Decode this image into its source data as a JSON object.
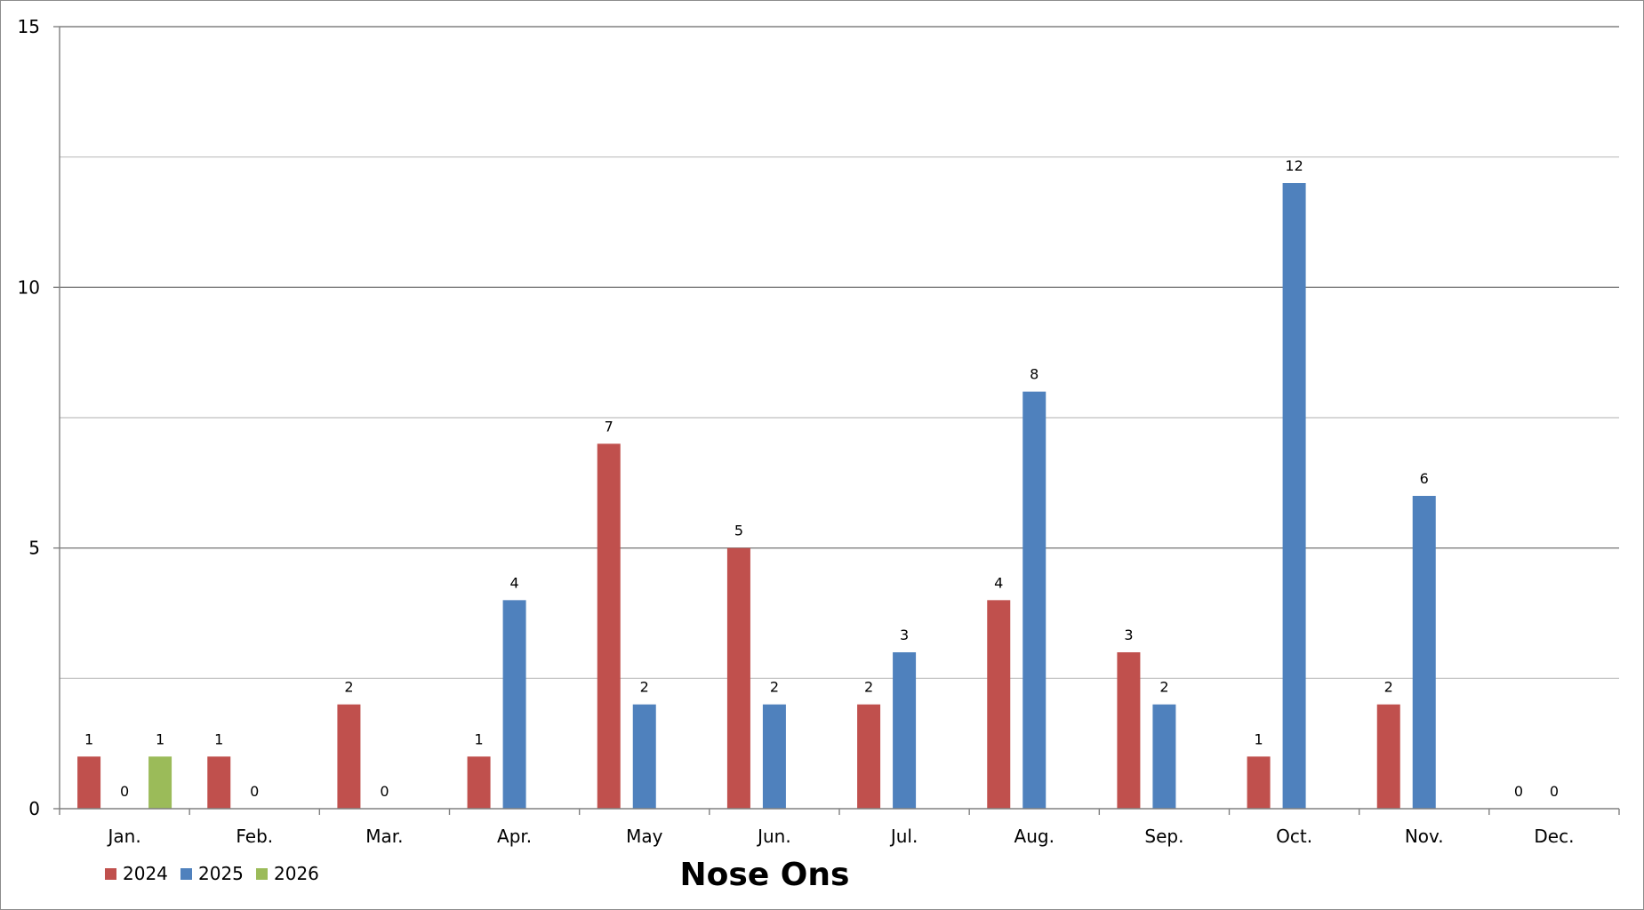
{
  "chart_data": {
    "type": "bar",
    "title": "Nose Ons",
    "xlabel": "",
    "ylabel": "",
    "ylim": [
      0,
      15
    ],
    "yticks": [
      0,
      5,
      10,
      15
    ],
    "minor_gridlines": true,
    "grid": true,
    "legend_position": "bottom-left",
    "categories": [
      "Jan.",
      "Feb.",
      "Mar.",
      "Apr.",
      "May",
      "Jun.",
      "Jul.",
      "Aug.",
      "Sep.",
      "Oct.",
      "Nov.",
      "Dec."
    ],
    "series": [
      {
        "name": "2024",
        "color": "#c0504d",
        "values": [
          1,
          1,
          2,
          1,
          7,
          5,
          2,
          4,
          3,
          1,
          2,
          0
        ]
      },
      {
        "name": "2025",
        "color": "#4f81bd",
        "values": [
          0,
          0,
          0,
          4,
          2,
          2,
          3,
          8,
          2,
          12,
          6,
          0
        ]
      },
      {
        "name": "2026",
        "color": "#9bbb59",
        "values": [
          1,
          null,
          null,
          null,
          null,
          null,
          null,
          null,
          null,
          null,
          null,
          null
        ]
      }
    ]
  }
}
